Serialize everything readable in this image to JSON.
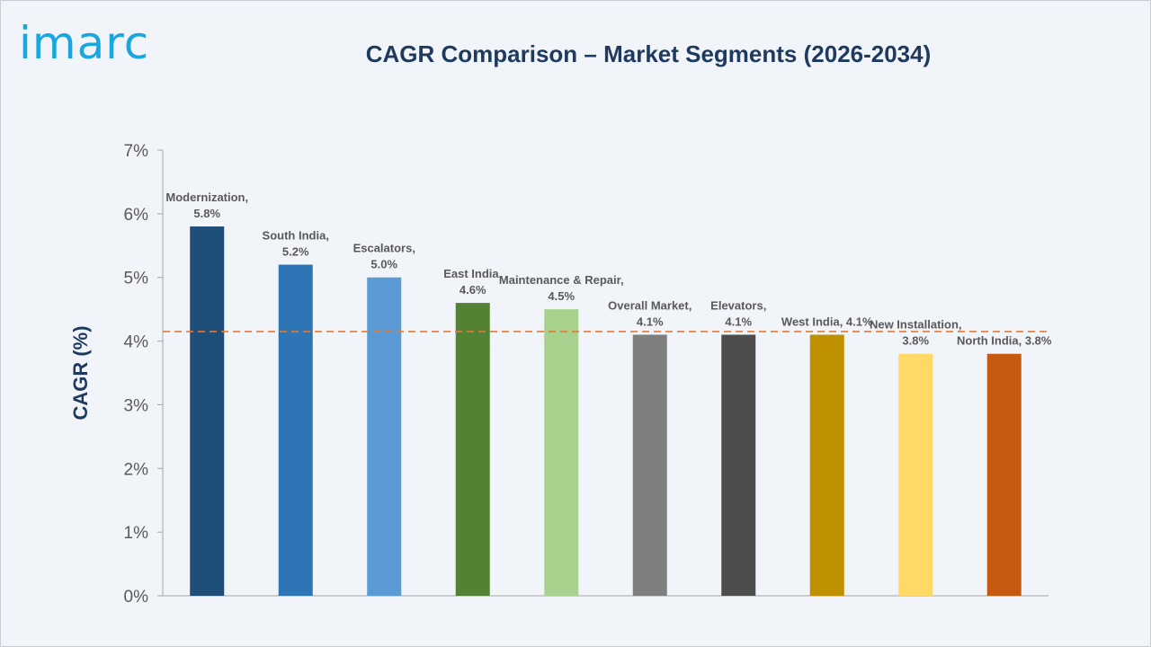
{
  "brand": {
    "logo_text": "imarc"
  },
  "chart_data": {
    "type": "bar",
    "title": "CAGR Comparison – Market Segments (2026-2034)",
    "xlabel": "",
    "ylabel": "CAGR (%)",
    "ylim": [
      0,
      7
    ],
    "yticks": [
      0,
      1,
      2,
      3,
      4,
      5,
      6,
      7
    ],
    "ytick_labels": [
      "0%",
      "1%",
      "2%",
      "3%",
      "4%",
      "5%",
      "6%",
      "7%"
    ],
    "grid": false,
    "reference_line": {
      "value": 4.15,
      "style": "dashed",
      "color": "#e07b39"
    },
    "categories": [
      "Modernization",
      "South India",
      "Escalators",
      "East India",
      "Maintenance & Repair",
      "Overall Market",
      "Elevators",
      "West India",
      "New Installation",
      "North India"
    ],
    "values": [
      5.8,
      5.2,
      5.0,
      4.6,
      4.5,
      4.1,
      4.1,
      4.1,
      3.8,
      3.8
    ],
    "data_labels": [
      [
        "Modernization,",
        "5.8%"
      ],
      [
        "South India,",
        "5.2%"
      ],
      [
        "Escalators,",
        "5.0%"
      ],
      [
        "East India,",
        "4.6%"
      ],
      [
        "Maintenance & Repair,",
        "4.5%"
      ],
      [
        "Overall Market,",
        "4.1%"
      ],
      [
        "Elevators,",
        "4.1%"
      ],
      [
        "West India, 4.1%"
      ],
      [
        "New Installation,",
        "3.8%"
      ],
      [
        "North India, 3.8%"
      ]
    ],
    "colors": [
      "#1f4e79",
      "#2e75b6",
      "#5b9bd5",
      "#548235",
      "#a9d18e",
      "#7f7f7f",
      "#4d4d4d",
      "#bf9000",
      "#ffd966",
      "#c55a11"
    ]
  }
}
